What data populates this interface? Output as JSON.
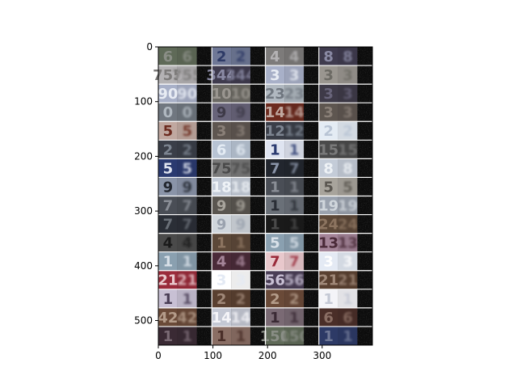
{
  "chart_data": {
    "type": "heatmap",
    "title": "",
    "xlabel": "",
    "ylabel": "",
    "xlim": [
      0,
      392
    ],
    "ylim": [
      545,
      0
    ],
    "xticks": [
      0,
      100,
      200,
      300
    ],
    "yticks": [
      0,
      100,
      200,
      300,
      400,
      500
    ],
    "grid": false,
    "image": {
      "description": "grid of house-number digit crops (SVHN-like): 4 column groups, each with an original crop, a reconstruction and a noise map; 16 rows",
      "column_groups": 4,
      "panels_per_group": [
        "original",
        "reconstruction",
        "noise-map"
      ],
      "rows": 16,
      "row_digits": [
        [
          "6",
          "2",
          "4",
          "8"
        ],
        [
          "755",
          "344",
          "3",
          "3"
        ],
        [
          "90",
          "10",
          "23",
          "3"
        ],
        [
          "0",
          "9",
          "14",
          "3"
        ],
        [
          "5",
          "3",
          "12",
          "2"
        ],
        [
          "2",
          "6",
          "1",
          "15"
        ],
        [
          "5",
          "75",
          "7",
          "8"
        ],
        [
          "9",
          "18",
          "1",
          "5"
        ],
        [
          "7",
          "9",
          "1",
          "19"
        ],
        [
          "7",
          "9",
          "1",
          "24"
        ],
        [
          "4",
          "1",
          "5",
          "13"
        ],
        [
          "1",
          "4",
          "7",
          "3"
        ],
        [
          "21",
          "3",
          "56",
          "21"
        ],
        [
          "1",
          "2",
          "2",
          "1"
        ],
        [
          "42",
          "14",
          "1",
          "6"
        ],
        [
          "1",
          "1",
          "150",
          "1"
        ]
      ]
    }
  }
}
